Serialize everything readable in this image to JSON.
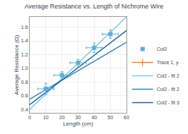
{
  "chart_data": {
    "type": "scatter",
    "title": "Average Resistance vs. Length of Nichrome Wire",
    "x_label": "Length (cm)",
    "y_label": "Average Resistance (Ω)",
    "xlim": [
      0,
      60
    ],
    "ylim": [
      0.35,
      1.75
    ],
    "xticks": [
      0,
      10,
      20,
      30,
      40,
      50,
      60
    ],
    "yticks": [
      0.4,
      0.6,
      0.8,
      {
        "value": 1.0,
        "label": "1.0"
      },
      1.2,
      1.4,
      1.6
    ],
    "grid": true,
    "legend": "lower right",
    "series": [
      {
        "name": "Col2",
        "type": "scatter",
        "marker": "square",
        "color": "#5bafd6",
        "x": [
          10,
          20,
          30,
          40,
          50
        ],
        "values": [
          0.7,
          0.9,
          1.08,
          1.3,
          1.5
        ],
        "xerr": [
          5,
          5,
          5,
          5,
          5
        ],
        "yerr": [
          0.08,
          0.05,
          0.05,
          0.07,
          0.06
        ]
      },
      {
        "name": "Trace 1, y",
        "type": "line",
        "marker": "plus",
        "color": "#e8852a"
      },
      {
        "name": "Col2 - fit 2",
        "type": "line",
        "color": "#7dcde8",
        "x": [
          0,
          60
        ],
        "values": [
          0.4,
          1.75
        ]
      },
      {
        "name": "Col2 - fit 2",
        "type": "line",
        "color": "#3a85b8",
        "x": [
          0,
          60
        ],
        "values": [
          0.55,
          1.38
        ]
      },
      {
        "name": "Col2 - fit 3",
        "type": "line",
        "color": "#2060a0",
        "x": [
          0,
          60
        ],
        "values": [
          0.47,
          1.55
        ]
      }
    ]
  }
}
